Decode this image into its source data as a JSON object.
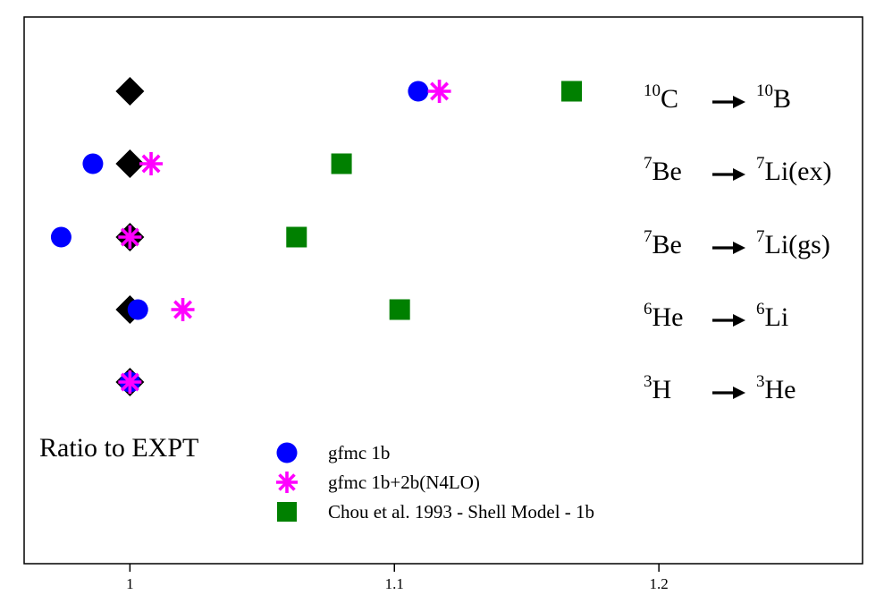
{
  "chart_data": {
    "type": "scatter",
    "title": "",
    "xlabel": "",
    "ylabel": "",
    "annotation": "Ratio to EXPT",
    "xlim": [
      0.96,
      1.277
    ],
    "xticks": [
      {
        "value": 1,
        "label": "1"
      },
      {
        "value": 1.1,
        "label": "1.1"
      },
      {
        "value": 1.2,
        "label": "1.2"
      }
    ],
    "grid": false,
    "legend_position": "bottom-center",
    "transitions": [
      {
        "parent_mass": "10",
        "parent": "C",
        "daughter_mass": "10",
        "daughter": "B"
      },
      {
        "parent_mass": "7",
        "parent": "Be",
        "daughter_mass": "7",
        "daughter": "Li(ex)"
      },
      {
        "parent_mass": "7",
        "parent": "Be",
        "daughter_mass": "7",
        "daughter": "Li(gs)"
      },
      {
        "parent_mass": "6",
        "parent": "He",
        "daughter_mass": "6",
        "daughter": "Li"
      },
      {
        "parent_mass": "3",
        "parent": "H",
        "daughter_mass": "3",
        "daughter": "He"
      }
    ],
    "series": [
      {
        "name": "",
        "marker": "diamond",
        "color": "#000000",
        "values": [
          1.0,
          1.0,
          1.0,
          1.0,
          1.0
        ]
      },
      {
        "name": "gfmc 1b",
        "marker": "circle",
        "color": "#0000ff",
        "values": [
          1.109,
          0.986,
          0.974,
          1.003,
          1.0
        ]
      },
      {
        "name": "gfmc 1b+2b(N4LO)",
        "marker": "asterisk",
        "color": "#ff00ff",
        "values": [
          1.117,
          1.008,
          1.0,
          1.02,
          1.0
        ]
      },
      {
        "name": "Chou et al. 1993 - Shell Model - 1b",
        "marker": "square",
        "color": "#008000",
        "values": [
          1.167,
          1.08,
          1.063,
          1.102,
          null
        ]
      }
    ]
  }
}
